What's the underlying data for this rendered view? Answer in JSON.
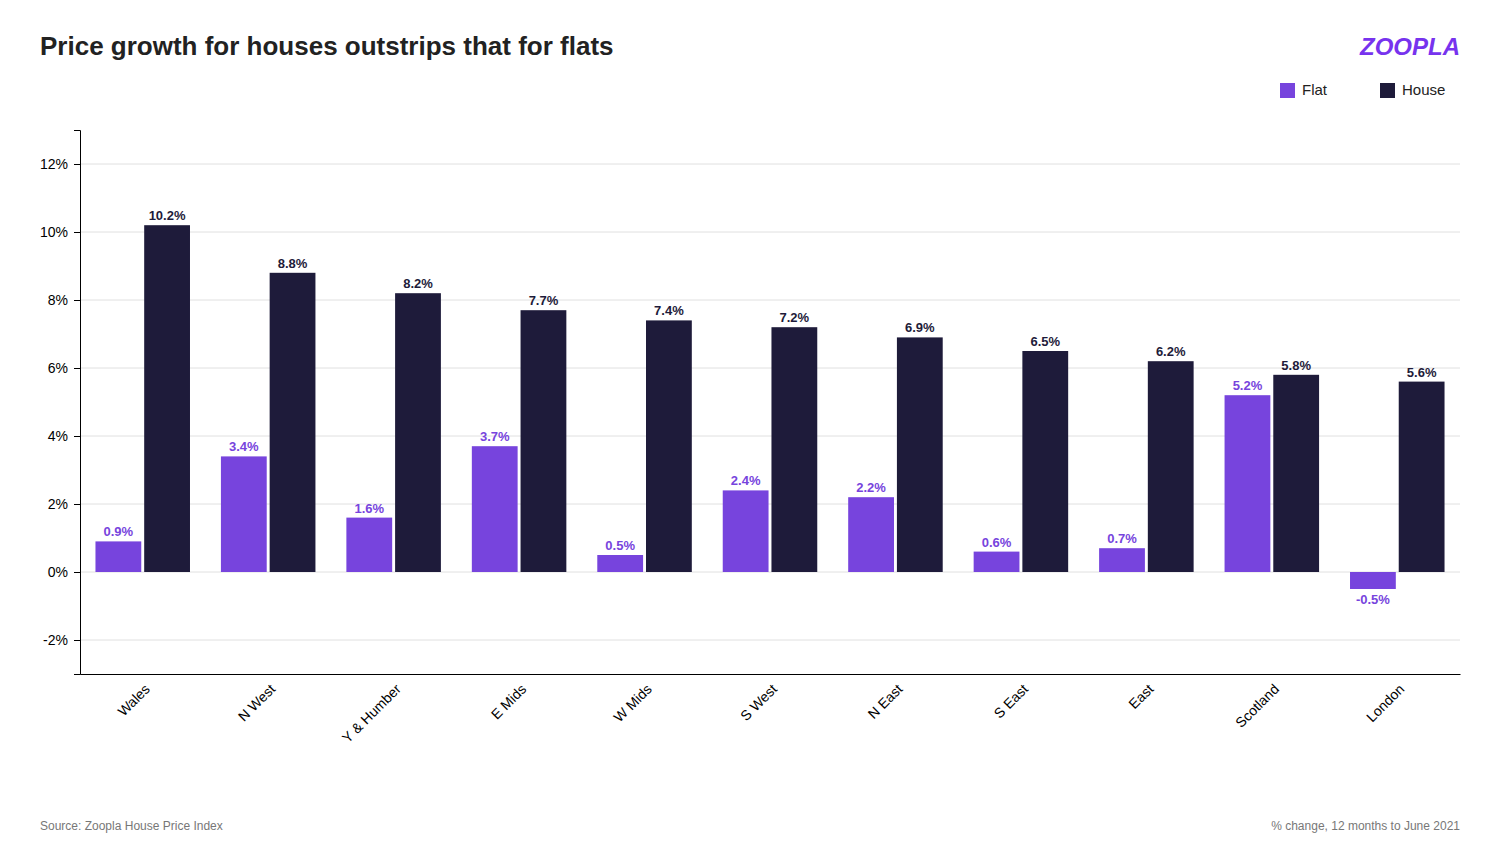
{
  "chart_data": {
    "type": "bar",
    "title": "Price growth for houses outstrips that for flats",
    "categories": [
      "Wales",
      "N West",
      "Y & Humber",
      "E Mids",
      "W Mids",
      "S West",
      "N East",
      "S East",
      "East",
      "Scotland",
      "London"
    ],
    "series": [
      {
        "name": "Flat",
        "color": "#7744dd",
        "values": [
          0.9,
          3.4,
          1.6,
          3.7,
          0.5,
          2.4,
          2.2,
          0.6,
          0.7,
          5.2,
          -0.5
        ],
        "value_labels": [
          "0.9%",
          "3.4%",
          "1.6%",
          "3.7%",
          "0.5%",
          "2.4%",
          "2.2%",
          "0.6%",
          "0.7%",
          "5.2%",
          "-0.5%"
        ]
      },
      {
        "name": "House",
        "color": "#1e1b3a",
        "values": [
          10.2,
          8.8,
          8.2,
          7.7,
          7.4,
          7.2,
          6.9,
          6.5,
          6.2,
          5.8,
          5.6
        ],
        "value_labels": [
          "10.2%",
          "8.8%",
          "8.2%",
          "7.7%",
          "7.4%",
          "7.2%",
          "6.9%",
          "6.5%",
          "6.2%",
          "5.8%",
          "5.6%"
        ]
      }
    ],
    "ylim": [
      -3,
      13
    ],
    "yticks": [
      {
        "value": -2,
        "label": "-2%"
      },
      {
        "value": 0,
        "label": "0%"
      },
      {
        "value": 2,
        "label": "2%"
      },
      {
        "value": 4,
        "label": "4%"
      },
      {
        "value": 6,
        "label": "6%"
      },
      {
        "value": 8,
        "label": "8%"
      },
      {
        "value": 10,
        "label": "10%"
      },
      {
        "value": 12,
        "label": "12%"
      }
    ],
    "grid": true,
    "legend": "upper-right",
    "data_labels": true,
    "annotations": [
      {
        "text": "ZOOPLA",
        "color": "#7733ee"
      },
      {
        "text": "Source: Zoopla House Price Index"
      },
      {
        "text": "% change, 12 months to June 2021"
      }
    ]
  }
}
